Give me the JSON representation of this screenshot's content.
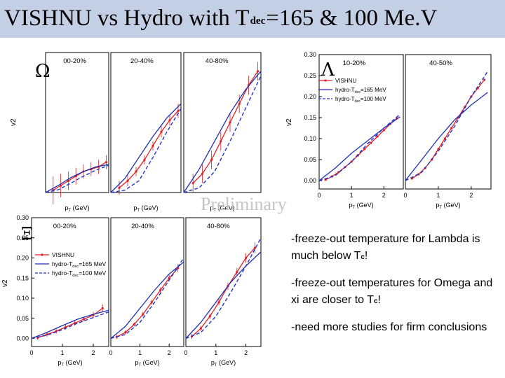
{
  "title": {
    "prefix": "VISHNU vs Hydro with T",
    "subscript": "dec",
    "suffix": "=165 & 100 Me.V"
  },
  "watermark": "Preliminary",
  "notes": [
    {
      "pre": "-freeze-out  temperature for Lambda is much below T",
      "sub": "c",
      "post": "!"
    },
    {
      "pre": "-freeze-out  temperatures  for Omega and xi are closer to T",
      "sub": "c",
      "post": "!"
    },
    {
      "pre": "-need more studies for firm conclusions",
      "sub": "",
      "post": ""
    }
  ],
  "colors": {
    "vishnu": "#e21f26",
    "hydro165": "#1f2fb0",
    "hydro100": "#2233cc",
    "title_bar": "#c2cfe5"
  },
  "chart_data": [
    {
      "type": "line",
      "particle": "Ω",
      "ylabel": "v2",
      "y_tick_labels": [],
      "x_tick_labels": [],
      "xlabel": "pT (GeV)",
      "ylim": [
        0,
        0.3
      ],
      "legend": {
        "placement": "none",
        "entries": []
      },
      "panels": [
        {
          "label": "00-20%",
          "xlim": [
            0,
            2.5
          ],
          "xlabel_parts": [
            "p",
            "T",
            "(GeV)"
          ],
          "series": [
            {
              "key": "vishnu",
              "x": [
                0.3,
                0.6,
                0.9,
                1.2,
                1.5,
                1.8,
                2.1,
                2.4
              ],
              "y": [
                0.005,
                0.015,
                0.025,
                0.035,
                0.045,
                0.05,
                0.055,
                0.065
              ],
              "err": [
                0.03,
                0.025,
                0.02,
                0.018,
                0.015,
                0.015,
                0.015,
                0.015
              ]
            },
            {
              "key": "hydro165",
              "x": [
                0,
                0.5,
                1.0,
                1.5,
                2.0,
                2.5
              ],
              "y": [
                0,
                0.015,
                0.032,
                0.045,
                0.055,
                0.06
              ]
            },
            {
              "key": "hydro100",
              "x": [
                0,
                0.5,
                1.0,
                1.5,
                2.0,
                2.5
              ],
              "y": [
                0,
                0.006,
                0.02,
                0.035,
                0.048,
                0.058
              ]
            }
          ]
        },
        {
          "label": "20-40%",
          "xlim": [
            0,
            2.5
          ],
          "xlabel_parts": [
            "p",
            "T",
            "(GeV)"
          ],
          "series": [
            {
              "key": "vishnu",
              "x": [
                0.3,
                0.6,
                0.9,
                1.2,
                1.5,
                1.8,
                2.1,
                2.4
              ],
              "y": [
                0.01,
                0.025,
                0.045,
                0.07,
                0.1,
                0.13,
                0.155,
                0.175
              ],
              "err": [
                0.015,
                0.012,
                0.01,
                0.01,
                0.01,
                0.012,
                0.012,
                0.015
              ]
            },
            {
              "key": "hydro165",
              "x": [
                0,
                0.5,
                1.0,
                1.5,
                2.0,
                2.5
              ],
              "y": [
                0,
                0.03,
                0.075,
                0.12,
                0.16,
                0.19
              ]
            },
            {
              "key": "hydro100",
              "x": [
                0,
                0.5,
                1.0,
                1.5,
                2.0,
                2.5
              ],
              "y": [
                0,
                0.005,
                0.025,
                0.075,
                0.13,
                0.18
              ]
            }
          ]
        },
        {
          "label": "40-80%",
          "xlim": [
            0,
            2.5
          ],
          "xlabel_parts": [
            "p",
            "T",
            "(GeV)"
          ],
          "series": [
            {
              "key": "vishnu",
              "x": [
                0.3,
                0.6,
                0.9,
                1.2,
                1.5,
                1.8,
                2.1,
                2.4
              ],
              "y": [
                0.02,
                0.04,
                0.07,
                0.11,
                0.15,
                0.19,
                0.23,
                0.26
              ],
              "err": [
                0.02,
                0.02,
                0.02,
                0.02,
                0.02,
                0.02,
                0.02,
                0.02
              ]
            },
            {
              "key": "hydro165",
              "x": [
                0,
                0.5,
                1.0,
                1.5,
                2.0,
                2.5
              ],
              "y": [
                0,
                0.05,
                0.11,
                0.17,
                0.22,
                0.26
              ]
            },
            {
              "key": "hydro100",
              "x": [
                0,
                0.5,
                1.0,
                1.5,
                2.0,
                2.5
              ],
              "y": [
                0,
                0.01,
                0.045,
                0.11,
                0.18,
                0.25
              ]
            }
          ]
        }
      ]
    },
    {
      "type": "line",
      "particle": "Λ",
      "ylabel": "v2",
      "y_tick_labels": [
        "0.30",
        "0.25",
        "0.20",
        "0.15",
        "0.10",
        "0.05",
        "0.00"
      ],
      "y_tick_values": [
        0.3,
        0.25,
        0.2,
        0.15,
        0.1,
        0.05,
        0.0
      ],
      "x_tick_labels": [
        "0",
        "1",
        "2"
      ],
      "x_tick_values": [
        0,
        1,
        2
      ],
      "xlabel": "pT (GeV)",
      "ylim": [
        -0.02,
        0.3
      ],
      "legend": {
        "placement": "top-right",
        "entries": [
          "VISHNU",
          "hydro-T",
          "hydro-T"
        ],
        "entry_subs": [
          "",
          "dec",
          "dec"
        ],
        "entry_tails": [
          "",
          "=165 MeV",
          "=100 MeV"
        ]
      },
      "panels": [
        {
          "label": "10-20%",
          "xlim": [
            0,
            2.6
          ],
          "xlabel_parts": [
            "p",
            "T",
            "(GeV)"
          ],
          "series": [
            {
              "key": "vishnu",
              "x": [
                0.2,
                0.4,
                0.6,
                0.8,
                1.0,
                1.2,
                1.4,
                1.6,
                1.8,
                2.0,
                2.2,
                2.4
              ],
              "y": [
                0.002,
                0.01,
                0.02,
                0.032,
                0.045,
                0.06,
                0.075,
                0.09,
                0.105,
                0.12,
                0.135,
                0.148
              ]
            },
            {
              "key": "hydro165",
              "x": [
                0,
                0.5,
                1.0,
                1.5,
                2.0,
                2.5
              ],
              "y": [
                0,
                0.03,
                0.065,
                0.095,
                0.125,
                0.152
              ]
            },
            {
              "key": "hydro100",
              "x": [
                0,
                0.5,
                1.0,
                1.5,
                2.0,
                2.5
              ],
              "y": [
                0,
                0.012,
                0.045,
                0.088,
                0.125,
                0.158
              ]
            }
          ]
        },
        {
          "label": "40-50%",
          "xlim": [
            0,
            2.6
          ],
          "xlabel_parts": [
            "p",
            "T",
            "(GeV)"
          ],
          "series": [
            {
              "key": "vishnu",
              "x": [
                0.2,
                0.4,
                0.6,
                0.8,
                1.0,
                1.2,
                1.4,
                1.6,
                1.8,
                2.0,
                2.2,
                2.4
              ],
              "y": [
                0.005,
                0.015,
                0.03,
                0.05,
                0.075,
                0.1,
                0.125,
                0.15,
                0.175,
                0.2,
                0.22,
                0.24
              ]
            },
            {
              "key": "hydro165",
              "x": [
                0,
                0.5,
                1.0,
                1.5,
                2.0,
                2.5
              ],
              "y": [
                0,
                0.05,
                0.1,
                0.145,
                0.18,
                0.21
              ]
            },
            {
              "key": "hydro100",
              "x": [
                0,
                0.5,
                1.0,
                1.5,
                2.0,
                2.5
              ],
              "y": [
                0,
                0.02,
                0.07,
                0.13,
                0.2,
                0.26
              ]
            }
          ]
        }
      ]
    },
    {
      "type": "line",
      "particle": "Ξ",
      "ylabel": "v2",
      "y_tick_labels": [
        "0.30",
        "0.25",
        "0.20",
        "0.15",
        "0.10",
        "0.05",
        "0.00"
      ],
      "y_tick_values": [
        0.3,
        0.25,
        0.2,
        0.15,
        0.1,
        0.05,
        0.0
      ],
      "x_tick_labels": [
        "0",
        "1",
        "2"
      ],
      "x_tick_values": [
        0,
        1,
        2
      ],
      "xlabel": "pT (GeV)",
      "ylim": [
        -0.02,
        0.3
      ],
      "legend": {
        "placement": "top-left",
        "entries": [
          "VISHNU",
          "hydro-T",
          "hydro-T"
        ],
        "entry_subs": [
          "",
          "dec",
          "dec"
        ],
        "entry_tails": [
          "",
          "=165 MeV",
          "=100 MeV"
        ]
      },
      "panels": [
        {
          "label": "00-20%",
          "xlim": [
            0,
            2.5
          ],
          "xlabel_parts": [
            "p",
            "T",
            "(GeV)"
          ],
          "series": [
            {
              "key": "vishnu",
              "x": [
                0.2,
                0.5,
                0.8,
                1.1,
                1.4,
                1.7,
                2.0,
                2.3
              ],
              "y": [
                0.002,
                0.01,
                0.018,
                0.028,
                0.038,
                0.048,
                0.058,
                0.075
              ],
              "err": [
                0.006,
                0.006,
                0.006,
                0.006,
                0.006,
                0.006,
                0.008,
                0.01
              ]
            },
            {
              "key": "hydro165",
              "x": [
                0,
                0.5,
                1.0,
                1.5,
                2.0,
                2.5
              ],
              "y": [
                0,
                0.015,
                0.032,
                0.048,
                0.06,
                0.07
              ]
            },
            {
              "key": "hydro100",
              "x": [
                0,
                0.5,
                1.0,
                1.5,
                2.0,
                2.5
              ],
              "y": [
                0,
                0.008,
                0.022,
                0.038,
                0.052,
                0.066
              ]
            }
          ]
        },
        {
          "label": "20-40%",
          "xlim": [
            0,
            2.5
          ],
          "xlabel_parts": [
            "p",
            "T",
            "(GeV)"
          ],
          "series": [
            {
              "key": "vishnu",
              "x": [
                0.2,
                0.5,
                0.8,
                1.1,
                1.4,
                1.7,
                2.0,
                2.3
              ],
              "y": [
                0.004,
                0.015,
                0.035,
                0.06,
                0.09,
                0.12,
                0.15,
                0.175
              ],
              "err": [
                0.005,
                0.005,
                0.005,
                0.006,
                0.006,
                0.007,
                0.008,
                0.01
              ]
            },
            {
              "key": "hydro165",
              "x": [
                0,
                0.5,
                1.0,
                1.5,
                2.0,
                2.5
              ],
              "y": [
                0,
                0.03,
                0.075,
                0.12,
                0.16,
                0.19
              ]
            },
            {
              "key": "hydro100",
              "x": [
                0,
                0.5,
                1.0,
                1.5,
                2.0,
                2.5
              ],
              "y": [
                0,
                0.01,
                0.04,
                0.09,
                0.145,
                0.2
              ]
            }
          ]
        },
        {
          "label": "40-80%",
          "xlim": [
            0,
            2.5
          ],
          "xlabel_parts": [
            "p",
            "T",
            "(GeV)"
          ],
          "series": [
            {
              "key": "vishnu",
              "x": [
                0.2,
                0.5,
                0.8,
                1.1,
                1.4,
                1.7,
                2.0,
                2.3
              ],
              "y": [
                0.005,
                0.025,
                0.055,
                0.09,
                0.13,
                0.165,
                0.2,
                0.225
              ],
              "err": [
                0.006,
                0.006,
                0.007,
                0.008,
                0.009,
                0.01,
                0.012,
                0.014
              ]
            },
            {
              "key": "hydro165",
              "x": [
                0,
                0.5,
                1.0,
                1.5,
                2.0,
                2.5
              ],
              "y": [
                0,
                0.04,
                0.09,
                0.14,
                0.18,
                0.215
              ]
            },
            {
              "key": "hydro100",
              "x": [
                0,
                0.5,
                1.0,
                1.5,
                2.0,
                2.5
              ],
              "y": [
                0,
                0.015,
                0.055,
                0.115,
                0.18,
                0.25
              ]
            }
          ]
        }
      ]
    }
  ]
}
